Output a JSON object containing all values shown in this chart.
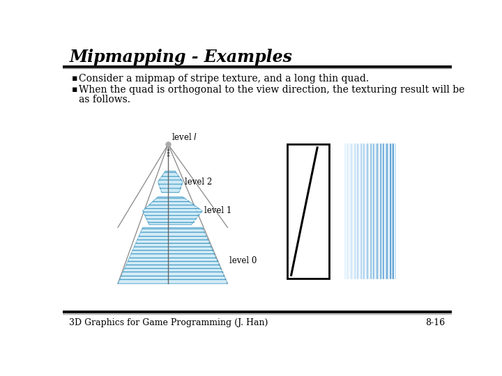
{
  "title": "Mipmapping - Examples",
  "bullet1": "Consider a mipmap of stripe texture, and a long thin quad.",
  "bullet2_line1": "When the quad is orthogonal to the view direction, the texturing result will be",
  "bullet2_line2": "as follows.",
  "footer_left": "3D Graphics for Game Programming (J. Han)",
  "footer_right": "8-16",
  "bg_color": "#ffffff",
  "title_color": "#000000",
  "stripe_dark": "#4a9fc8",
  "stripe_light": "#daf0fa",
  "pyramid_face": "#b8dff0",
  "pyramid_edge": "#4a9fc8",
  "outline_color": "#888888"
}
